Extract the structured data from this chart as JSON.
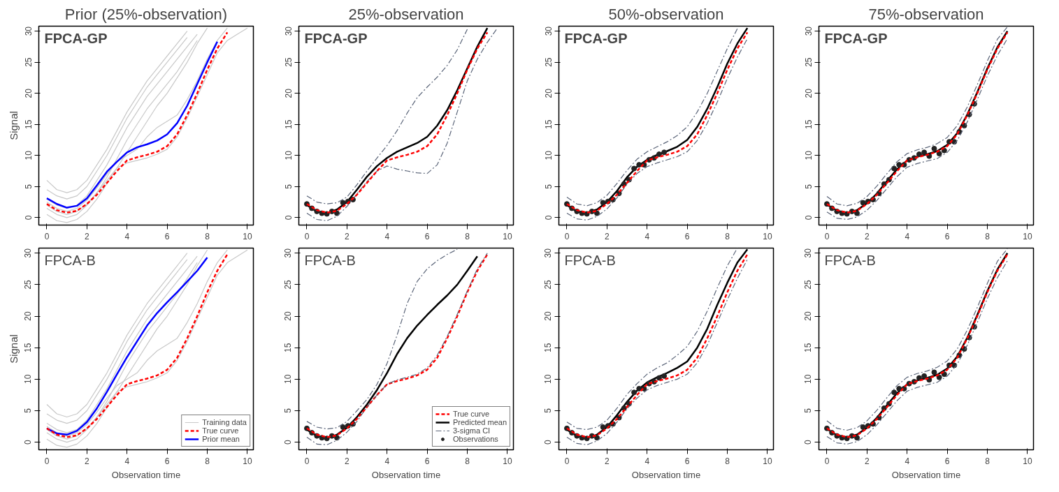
{
  "chart_data": [
    {
      "type": "line",
      "title": "Prior (25%-observation)",
      "ylabel": "Signal",
      "annotations": [
        "FPCA-GP"
      ],
      "xlim": [
        -0.4,
        10.3
      ],
      "ylim": [
        -1.2,
        30.8
      ],
      "xticks": [
        0,
        2,
        4,
        6,
        8,
        10
      ],
      "yticks": [
        0,
        5,
        10,
        15,
        20,
        25,
        30
      ],
      "grid": false,
      "legend": false,
      "x": [
        0,
        0.5,
        1,
        1.5,
        2,
        2.5,
        3,
        3.5,
        4,
        4.5,
        5,
        5.5,
        6,
        6.5,
        7,
        7.5,
        8,
        8.5,
        9,
        9.5,
        10
      ],
      "series": [
        {
          "color": "#c8c8c8",
          "line_style": "solid",
          "values": [
            6,
            4.5,
            4,
            4.5,
            6,
            8.5,
            11,
            14,
            17,
            19.5,
            22,
            24,
            26,
            28,
            30,
            null,
            null,
            null,
            null,
            null,
            null
          ]
        },
        {
          "color": "#c8c8c8",
          "line_style": "solid",
          "values": [
            4.5,
            3.5,
            3,
            3.5,
            5,
            7.5,
            10,
            13,
            16,
            18.5,
            21,
            23,
            25,
            27,
            29,
            null,
            null,
            null,
            null,
            null,
            null
          ]
        },
        {
          "color": "#c8c8c8",
          "line_style": "solid",
          "values": [
            3,
            2,
            1.5,
            2,
            3.5,
            6,
            8.5,
            11.5,
            14.5,
            17,
            19.5,
            21.5,
            23.5,
            25.5,
            27.5,
            29.5,
            null,
            null,
            null,
            null,
            null
          ]
        },
        {
          "color": "#c8c8c8",
          "line_style": "solid",
          "values": [
            1.5,
            0.5,
            0,
            0.5,
            2,
            4,
            6.5,
            9.5,
            12.5,
            15,
            17.5,
            19.5,
            21.5,
            23.5,
            26,
            28.5,
            null,
            null,
            null,
            null,
            null
          ]
        },
        {
          "color": "#c8c8c8",
          "line_style": "solid",
          "values": [
            0.5,
            -0.5,
            -0.8,
            -0.3,
            1,
            3,
            5.5,
            8,
            10.5,
            13,
            15.5,
            18,
            20,
            22.5,
            25,
            28,
            30.5,
            null,
            null,
            null,
            null
          ]
        },
        {
          "color": "#c8c8c8",
          "line_style": "solid",
          "values": [
            2,
            1,
            0.5,
            1,
            2.2,
            4,
            6,
            8,
            8.8,
            9.2,
            9.6,
            10.2,
            11,
            13,
            16,
            19.5,
            23,
            26.5,
            28.5,
            29.5,
            30.5
          ]
        },
        {
          "color": "#c8c8c8",
          "line_style": "solid",
          "values": [
            2.5,
            1.5,
            1,
            1.5,
            2.8,
            4.8,
            7,
            9,
            10,
            11,
            13,
            14.5,
            15.5,
            16.5,
            19,
            22,
            25.5,
            28.5,
            30.5,
            null,
            null
          ]
        },
        {
          "color": "#ff0000",
          "line_style": "dashed",
          "values": [
            2.2,
            1.2,
            0.8,
            1.1,
            2.2,
            3.7,
            5.6,
            7.5,
            9.2,
            9.7,
            10.1,
            10.6,
            11.5,
            13.4,
            16.5,
            20,
            23.8,
            27.2,
            29.8,
            null,
            null
          ]
        },
        {
          "color": "#0000ff",
          "line_style": "solid",
          "values": [
            3.1,
            2.2,
            1.6,
            1.9,
            3.1,
            5.2,
            7.4,
            9.0,
            10.5,
            11.3,
            11.8,
            12.4,
            13.4,
            15.2,
            18.0,
            21.5,
            25.0,
            28.3,
            null,
            null,
            null
          ]
        }
      ]
    },
    {
      "type": "line",
      "title": "25%-observation",
      "annotations": [
        "FPCA-GP"
      ],
      "xlim": [
        -0.4,
        10.3
      ],
      "ylim": [
        -1.2,
        30.8
      ],
      "xticks": [
        0,
        2,
        4,
        6,
        8,
        10
      ],
      "yticks": [
        0,
        5,
        10,
        15,
        20,
        25,
        30
      ],
      "grid": false,
      "legend": false,
      "x": [
        0,
        0.5,
        1,
        1.5,
        2,
        2.5,
        3,
        3.5,
        4,
        4.5,
        5,
        5.5,
        6,
        6.5,
        7,
        7.5,
        8,
        8.5,
        9,
        9.5
      ],
      "series": [
        {
          "color": "#5a6478",
          "line_style": "dashdot",
          "values": [
            3.5,
            2.5,
            2.2,
            2.4,
            3.3,
            5.3,
            7.5,
            9.6,
            11.6,
            14.0,
            16.8,
            19.3,
            21.0,
            22.6,
            24.5,
            27.0,
            30.3,
            null,
            null,
            null
          ]
        },
        {
          "color": "#5a6478",
          "line_style": "dashdot",
          "values": [
            0.7,
            -0.3,
            -0.5,
            0.2,
            1.8,
            3.8,
            5.8,
            7.5,
            8.3,
            7.8,
            7.5,
            7.2,
            7.1,
            8.5,
            12.0,
            17.0,
            22.0,
            25.5,
            28.2,
            30.5
          ]
        },
        {
          "color": "#ff0000",
          "line_style": "dashed",
          "values": [
            2.2,
            1.2,
            0.8,
            1.1,
            2.2,
            3.7,
            5.6,
            7.5,
            9.2,
            9.7,
            10.1,
            10.6,
            11.5,
            13.4,
            16.5,
            20,
            23.8,
            27.2,
            29.8,
            null
          ]
        },
        {
          "color": "#000000",
          "line_style": "solid",
          "values": [
            2.0,
            1.0,
            0.7,
            1.3,
            2.5,
            4.5,
            6.6,
            8.3,
            9.6,
            10.6,
            11.3,
            12.0,
            13.0,
            14.8,
            17.3,
            20.5,
            24.0,
            27.5,
            30.5,
            null
          ]
        },
        {
          "type": "scatter",
          "marker": "circle",
          "color": "#222222",
          "x": [
            0,
            0.25,
            0.5,
            0.75,
            1.0,
            1.25,
            1.5,
            1.8,
            2.05,
            2.3
          ],
          "values": [
            2.2,
            1.5,
            1.0,
            0.7,
            0.6,
            1.0,
            0.7,
            2.4,
            2.6,
            2.9
          ]
        }
      ]
    },
    {
      "type": "line",
      "title": "50%-observation",
      "annotations": [
        "FPCA-GP"
      ],
      "xlim": [
        -0.4,
        10.3
      ],
      "ylim": [
        -1.2,
        30.8
      ],
      "xticks": [
        0,
        2,
        4,
        6,
        8,
        10
      ],
      "yticks": [
        0,
        5,
        10,
        15,
        20,
        25,
        30
      ],
      "grid": false,
      "legend": false,
      "x": [
        0,
        0.5,
        1,
        1.5,
        2,
        2.5,
        3,
        3.5,
        4,
        4.5,
        5,
        5.5,
        6,
        6.5,
        7,
        7.5,
        8,
        8.5,
        9
      ],
      "series": [
        {
          "color": "#5a6478",
          "line_style": "dashdot",
          "values": [
            3.3,
            2.2,
            1.9,
            2.4,
            3.6,
            5.5,
            7.6,
            9.4,
            10.6,
            11.4,
            12.2,
            13.2,
            14.6,
            17.0,
            20.0,
            23.6,
            27.2,
            30.4,
            null
          ]
        },
        {
          "color": "#5a6478",
          "line_style": "dashdot",
          "values": [
            0.7,
            -0.2,
            -0.4,
            0.2,
            1.4,
            3.2,
            5.4,
            7.1,
            8.2,
            8.8,
            9.3,
            9.8,
            10.6,
            12.4,
            15.2,
            18.6,
            22.4,
            25.8,
            28.8
          ]
        },
        {
          "color": "#ff0000",
          "line_style": "dashed",
          "values": [
            2.2,
            1.2,
            0.8,
            1.1,
            2.2,
            3.7,
            5.6,
            7.5,
            9.2,
            9.7,
            10.1,
            10.6,
            11.5,
            13.4,
            16.5,
            20,
            23.8,
            27.2,
            29.8
          ]
        },
        {
          "color": "#000000",
          "line_style": "solid",
          "values": [
            2.0,
            1.0,
            0.8,
            1.3,
            2.5,
            4.3,
            6.5,
            8.2,
            9.3,
            10.1,
            10.7,
            11.4,
            12.5,
            14.6,
            17.5,
            21.0,
            24.8,
            28.0,
            30.5
          ]
        },
        {
          "type": "scatter",
          "marker": "circle",
          "color": "#222222",
          "x": [
            0,
            0.25,
            0.5,
            0.75,
            1.0,
            1.25,
            1.5,
            1.8,
            2.05,
            2.3,
            2.6,
            2.85,
            3.1,
            3.35,
            3.6,
            3.85,
            4.1,
            4.35,
            4.6,
            4.85
          ],
          "values": [
            2.2,
            1.5,
            1.0,
            0.7,
            0.6,
            1.0,
            0.7,
            2.4,
            2.6,
            2.9,
            3.9,
            5.4,
            6.1,
            7.9,
            8.5,
            8.5,
            9.3,
            9.6,
            10.2,
            10.5
          ]
        }
      ]
    },
    {
      "type": "line",
      "title": "75%-observation",
      "annotations": [
        "FPCA-GP"
      ],
      "xlim": [
        -0.4,
        10.3
      ],
      "ylim": [
        -1.2,
        30.8
      ],
      "xticks": [
        0,
        2,
        4,
        6,
        8,
        10
      ],
      "yticks": [
        0,
        5,
        10,
        15,
        20,
        25,
        30
      ],
      "grid": false,
      "legend": false,
      "x": [
        0,
        0.5,
        1,
        1.5,
        2,
        2.5,
        3,
        3.5,
        4,
        4.5,
        5,
        5.5,
        6,
        6.5,
        7,
        7.5,
        8,
        8.5,
        9
      ],
      "series": [
        {
          "color": "#5a6478",
          "line_style": "dashdot",
          "values": [
            3.4,
            2.2,
            1.9,
            2.3,
            3.4,
            5.1,
            7.1,
            9.0,
            10.3,
            10.9,
            11.3,
            11.9,
            12.9,
            14.8,
            17.8,
            21.4,
            25.2,
            28.7,
            30.7
          ]
        },
        {
          "color": "#5a6478",
          "line_style": "dashdot",
          "values": [
            0.9,
            -0.1,
            -0.3,
            0.1,
            1.2,
            2.8,
            4.7,
            6.6,
            8.1,
            8.7,
            9.1,
            9.5,
            10.5,
            12.4,
            15.4,
            19.0,
            22.8,
            26.1,
            28.8
          ]
        },
        {
          "color": "#000000",
          "line_style": "solid",
          "values": [
            2.1,
            1.1,
            0.8,
            1.2,
            2.3,
            3.9,
            5.9,
            7.8,
            9.2,
            9.8,
            10.2,
            10.7,
            11.7,
            13.6,
            16.6,
            20.2,
            24.0,
            27.4,
            30.0
          ]
        },
        {
          "color": "#ff0000",
          "line_style": "dashed",
          "values": [
            2.2,
            1.2,
            0.8,
            1.1,
            2.2,
            3.7,
            5.6,
            7.5,
            9.2,
            9.7,
            10.1,
            10.6,
            11.5,
            13.4,
            16.5,
            20,
            23.8,
            27.2,
            29.8
          ]
        },
        {
          "type": "scatter",
          "marker": "circle",
          "color": "#222222",
          "x": [
            0,
            0.25,
            0.5,
            0.75,
            1.0,
            1.25,
            1.5,
            1.8,
            2.05,
            2.3,
            2.6,
            2.85,
            3.1,
            3.35,
            3.6,
            3.85,
            4.1,
            4.35,
            4.6,
            4.85,
            5.1,
            5.35,
            5.6,
            5.85,
            6.1,
            6.35,
            6.6,
            6.85,
            7.1,
            7.35
          ],
          "values": [
            2.2,
            1.5,
            1.0,
            0.7,
            0.6,
            1.0,
            0.7,
            2.4,
            2.6,
            2.9,
            3.9,
            5.4,
            6.1,
            7.9,
            8.5,
            8.5,
            9.3,
            9.6,
            10.2,
            10.5,
            9.9,
            11.1,
            10.3,
            10.8,
            12.2,
            12.2,
            13.8,
            14.8,
            16.6,
            18.3
          ]
        }
      ]
    },
    {
      "type": "line",
      "xlabel": "Observation time",
      "ylabel": "Signal",
      "annotations": [
        "FPCA-B"
      ],
      "xlim": [
        -0.4,
        10.3
      ],
      "ylim": [
        -1.2,
        30.8
      ],
      "xticks": [
        0,
        2,
        4,
        6,
        8,
        10
      ],
      "yticks": [
        0,
        5,
        10,
        15,
        20,
        25,
        30
      ],
      "grid": false,
      "legend": "bottom right",
      "x": [
        0,
        0.5,
        1,
        1.5,
        2,
        2.5,
        3,
        3.5,
        4,
        4.5,
        5,
        5.5,
        6,
        6.5,
        7,
        7.5,
        8,
        8.5,
        9,
        9.5,
        10
      ],
      "series": [
        {
          "name": "Training data",
          "color": "#c8c8c8",
          "line_style": "solid",
          "values": [
            6,
            4.5,
            4,
            4.5,
            6,
            8.5,
            11,
            14,
            17,
            19.5,
            22,
            24,
            26,
            28,
            30,
            null,
            null,
            null,
            null,
            null,
            null
          ]
        },
        {
          "color": "#c8c8c8",
          "line_style": "solid",
          "values": [
            4.5,
            3.5,
            3,
            3.5,
            5,
            7.5,
            10,
            13,
            16,
            18.5,
            21,
            23,
            25,
            27,
            29,
            null,
            null,
            null,
            null,
            null,
            null
          ]
        },
        {
          "color": "#c8c8c8",
          "line_style": "solid",
          "values": [
            3,
            2,
            1.5,
            2,
            3.5,
            6,
            8.5,
            11.5,
            14.5,
            17,
            19.5,
            21.5,
            23.5,
            25.5,
            27.5,
            29.5,
            null,
            null,
            null,
            null,
            null
          ]
        },
        {
          "color": "#c8c8c8",
          "line_style": "solid",
          "values": [
            1.5,
            0.5,
            0,
            0.5,
            2,
            4,
            6.5,
            9.5,
            12.5,
            15,
            17.5,
            19.5,
            21.5,
            23.5,
            26,
            28.5,
            null,
            null,
            null,
            null,
            null
          ]
        },
        {
          "color": "#c8c8c8",
          "line_style": "solid",
          "values": [
            0.5,
            -0.5,
            -0.8,
            -0.3,
            1,
            3,
            5.5,
            8,
            10.5,
            13,
            15.5,
            18,
            20,
            22.5,
            25,
            28,
            30.5,
            null,
            null,
            null,
            null
          ]
        },
        {
          "color": "#c8c8c8",
          "line_style": "solid",
          "values": [
            2,
            1,
            0.5,
            1,
            2.2,
            4,
            6,
            8,
            8.8,
            9.2,
            9.6,
            10.2,
            11,
            13,
            16,
            19.5,
            23,
            26.5,
            28.5,
            29.5,
            30.5
          ]
        },
        {
          "color": "#c8c8c8",
          "line_style": "solid",
          "values": [
            2.5,
            1.5,
            1,
            1.5,
            2.8,
            4.8,
            7,
            9,
            10,
            11,
            13,
            14.5,
            15.5,
            16.5,
            19,
            22,
            25.5,
            28.5,
            30.5,
            null,
            null
          ]
        },
        {
          "name": "True curve",
          "color": "#ff0000",
          "line_style": "dashed",
          "values": [
            2.2,
            1.2,
            0.8,
            1.1,
            2.2,
            3.7,
            5.6,
            7.5,
            9.2,
            9.7,
            10.1,
            10.6,
            11.5,
            13.4,
            16.5,
            20,
            23.8,
            27.2,
            29.8,
            null,
            null
          ]
        },
        {
          "name": "Prior mean",
          "color": "#0000ff",
          "line_style": "solid",
          "values": [
            2.2,
            1.4,
            1.2,
            1.8,
            3.2,
            5.4,
            8.0,
            10.8,
            13.5,
            16.0,
            18.5,
            20.5,
            22.2,
            23.8,
            25.5,
            27.2,
            29.3,
            null,
            null,
            null,
            null
          ]
        }
      ]
    },
    {
      "type": "line",
      "xlabel": "Observation time",
      "annotations": [
        "FPCA-B"
      ],
      "xlim": [
        -0.4,
        10.3
      ],
      "ylim": [
        -1.2,
        30.8
      ],
      "xticks": [
        0,
        2,
        4,
        6,
        8,
        10
      ],
      "yticks": [
        0,
        5,
        10,
        15,
        20,
        25,
        30
      ],
      "grid": false,
      "legend": "bottom right",
      "x": [
        0,
        0.5,
        1,
        1.5,
        2,
        2.5,
        3,
        3.5,
        4,
        4.5,
        5,
        5.5,
        6,
        6.5,
        7,
        7.5,
        8,
        8.5,
        9
      ],
      "series": [
        {
          "name": "True curve",
          "color": "#ff0000",
          "line_style": "dashed",
          "values": [
            2.2,
            1.2,
            0.8,
            1.1,
            2.2,
            3.7,
            5.6,
            7.5,
            9.2,
            9.7,
            10.1,
            10.6,
            11.5,
            13.4,
            16.5,
            20,
            23.8,
            27.2,
            29.8
          ]
        },
        {
          "name": "Predicted mean",
          "color": "#000000",
          "line_style": "solid",
          "values": [
            2.0,
            1.0,
            0.7,
            1.2,
            2.3,
            4.0,
            6.0,
            8.3,
            11.0,
            14.0,
            16.5,
            18.5,
            20.2,
            21.8,
            23.3,
            25.0,
            27.2,
            29.5,
            null
          ]
        },
        {
          "name": "3-sigma CI",
          "color": "#5a6478",
          "line_style": "dashdot",
          "values": [
            3.3,
            2.4,
            2.1,
            2.3,
            3.3,
            5.0,
            6.8,
            9.2,
            12.5,
            17.0,
            22.0,
            25.5,
            27.5,
            28.8,
            29.8,
            30.6,
            null,
            null,
            null
          ]
        },
        {
          "color": "#5a6478",
          "line_style": "dashdot",
          "values": [
            0.8,
            -0.3,
            -0.4,
            0.3,
            1.6,
            3.3,
            5.6,
            7.5,
            9.2,
            9.9,
            10.3,
            10.8,
            11.8,
            13.8,
            16.8,
            20.3,
            24.0,
            27.5,
            30.0
          ]
        },
        {
          "name": "Observations",
          "type": "scatter",
          "marker": "circle",
          "color": "#222222",
          "x": [
            0,
            0.25,
            0.5,
            0.75,
            1.0,
            1.25,
            1.5,
            1.8,
            2.05,
            2.3
          ],
          "values": [
            2.2,
            1.5,
            1.0,
            0.7,
            0.6,
            1.0,
            0.7,
            2.4,
            2.6,
            2.9
          ]
        }
      ]
    },
    {
      "type": "line",
      "xlabel": "Observation time",
      "annotations": [
        "FPCA-B"
      ],
      "xlim": [
        -0.4,
        10.3
      ],
      "ylim": [
        -1.2,
        30.8
      ],
      "xticks": [
        0,
        2,
        4,
        6,
        8,
        10
      ],
      "yticks": [
        0,
        5,
        10,
        15,
        20,
        25,
        30
      ],
      "grid": false,
      "legend": false,
      "x": [
        0,
        0.5,
        1,
        1.5,
        2,
        2.5,
        3,
        3.5,
        4,
        4.5,
        5,
        5.5,
        6,
        6.5,
        7,
        7.5,
        8,
        8.5,
        9
      ],
      "series": [
        {
          "color": "#5a6478",
          "line_style": "dashdot",
          "values": [
            3.2,
            2.2,
            2.0,
            2.4,
            3.5,
            5.4,
            7.6,
            9.3,
            10.8,
            11.8,
            12.6,
            13.8,
            15.2,
            17.6,
            20.8,
            24.5,
            28.0,
            30.8,
            null
          ]
        },
        {
          "color": "#5a6478",
          "line_style": "dashdot",
          "values": [
            0.8,
            -0.2,
            -0.4,
            0.2,
            1.4,
            3.2,
            5.3,
            7.0,
            8.3,
            9.0,
            9.5,
            10.0,
            10.8,
            12.6,
            15.4,
            19.0,
            22.6,
            26.0,
            29.0
          ]
        },
        {
          "color": "#ff0000",
          "line_style": "dashed",
          "values": [
            2.2,
            1.2,
            0.8,
            1.1,
            2.2,
            3.7,
            5.6,
            7.5,
            9.2,
            9.7,
            10.1,
            10.6,
            11.5,
            13.4,
            16.5,
            20,
            23.8,
            27.2,
            29.8
          ]
        },
        {
          "color": "#000000",
          "line_style": "solid",
          "values": [
            2.0,
            1.0,
            0.7,
            1.2,
            2.4,
            4.3,
            6.4,
            8.2,
            9.5,
            10.3,
            11.0,
            11.8,
            12.8,
            15.0,
            18.0,
            21.8,
            25.3,
            28.5,
            30.6
          ]
        },
        {
          "type": "scatter",
          "marker": "circle",
          "color": "#222222",
          "x": [
            0,
            0.25,
            0.5,
            0.75,
            1.0,
            1.25,
            1.5,
            1.8,
            2.05,
            2.3,
            2.6,
            2.85,
            3.1,
            3.35,
            3.6,
            3.85,
            4.1,
            4.35,
            4.6,
            4.85
          ],
          "values": [
            2.2,
            1.5,
            1.0,
            0.7,
            0.6,
            1.0,
            0.7,
            2.4,
            2.6,
            2.9,
            3.9,
            5.4,
            6.1,
            7.9,
            8.5,
            8.5,
            9.3,
            9.6,
            10.2,
            10.5
          ]
        }
      ]
    },
    {
      "type": "line",
      "xlabel": "Observation time",
      "annotations": [
        "FPCA-B"
      ],
      "xlim": [
        -0.4,
        10.3
      ],
      "ylim": [
        -1.2,
        30.8
      ],
      "xticks": [
        0,
        2,
        4,
        6,
        8,
        10
      ],
      "yticks": [
        0,
        5,
        10,
        15,
        20,
        25,
        30
      ],
      "grid": false,
      "legend": false,
      "x": [
        0,
        0.5,
        1,
        1.5,
        2,
        2.5,
        3,
        3.5,
        4,
        4.5,
        5,
        5.5,
        6,
        6.5,
        7,
        7.5,
        8,
        8.5,
        9
      ],
      "series": [
        {
          "color": "#5a6478",
          "line_style": "dashdot",
          "values": [
            3.4,
            2.2,
            1.9,
            2.3,
            3.4,
            5.1,
            7.1,
            9.0,
            10.3,
            10.9,
            11.3,
            11.9,
            12.9,
            14.8,
            17.8,
            21.4,
            25.2,
            28.7,
            30.7
          ]
        },
        {
          "color": "#5a6478",
          "line_style": "dashdot",
          "values": [
            0.9,
            -0.1,
            -0.3,
            0.1,
            1.2,
            2.8,
            4.7,
            6.6,
            8.1,
            8.7,
            9.1,
            9.5,
            10.5,
            12.4,
            15.4,
            19.0,
            22.8,
            26.1,
            28.8
          ]
        },
        {
          "color": "#000000",
          "line_style": "solid",
          "values": [
            2.1,
            1.1,
            0.8,
            1.2,
            2.3,
            3.9,
            5.9,
            7.8,
            9.2,
            9.8,
            10.2,
            10.7,
            11.7,
            13.6,
            16.6,
            20.2,
            24.0,
            27.4,
            30.0
          ]
        },
        {
          "color": "#ff0000",
          "line_style": "dashed",
          "values": [
            2.2,
            1.2,
            0.8,
            1.1,
            2.2,
            3.7,
            5.6,
            7.5,
            9.2,
            9.7,
            10.1,
            10.6,
            11.5,
            13.4,
            16.5,
            20,
            23.8,
            27.2,
            29.8
          ]
        },
        {
          "type": "scatter",
          "marker": "circle",
          "color": "#222222",
          "x": [
            0,
            0.25,
            0.5,
            0.75,
            1.0,
            1.25,
            1.5,
            1.8,
            2.05,
            2.3,
            2.6,
            2.85,
            3.1,
            3.35,
            3.6,
            3.85,
            4.1,
            4.35,
            4.6,
            4.85,
            5.1,
            5.35,
            5.6,
            5.85,
            6.1,
            6.35,
            6.6,
            6.85,
            7.1,
            7.35
          ],
          "values": [
            2.2,
            1.5,
            1.0,
            0.7,
            0.6,
            1.0,
            0.7,
            2.4,
            2.6,
            2.9,
            3.9,
            5.4,
            6.1,
            7.9,
            8.5,
            8.5,
            9.3,
            9.6,
            10.2,
            10.5,
            9.9,
            11.1,
            10.3,
            10.8,
            12.2,
            12.2,
            13.8,
            14.8,
            16.6,
            18.3
          ]
        }
      ]
    }
  ]
}
